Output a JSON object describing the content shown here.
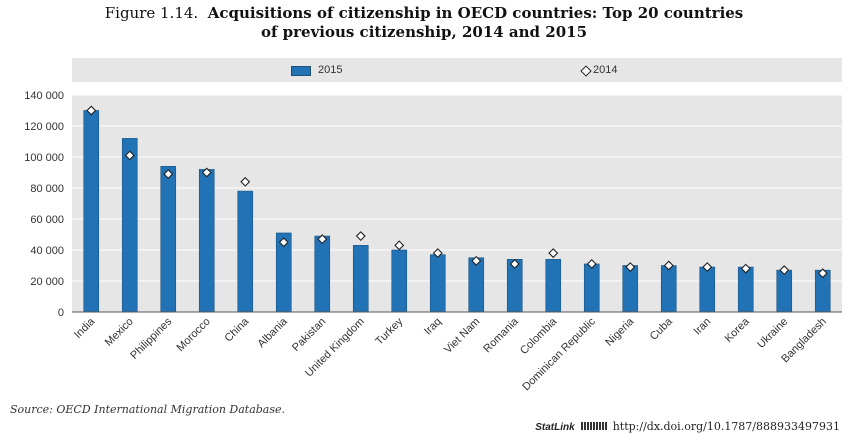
{
  "title": {
    "figure_number": "Figure 1.14.",
    "line1": "Acquisitions of citizenship in OECD countries: Top 20 countries",
    "line2": "of previous citizenship, 2014 and 2015"
  },
  "colors": {
    "bar": "#2273b5",
    "bar_edge": "#1a5585",
    "plot_bg": "#e6e6e6",
    "marker_fill": "#ffffff",
    "marker_edge": "#222222"
  },
  "chart_data": {
    "type": "bar",
    "categories": [
      "India",
      "Mexico",
      "Philippines",
      "Morocco",
      "China",
      "Albania",
      "Pakistan",
      "United Kingdom",
      "Turkey",
      "Iraq",
      "Viet Nam",
      "Romania",
      "Colombia",
      "Dominican Republic",
      "Nigeria",
      "Cuba",
      "Iran",
      "Korea",
      "Ukraine",
      "Bangladesh"
    ],
    "series": [
      {
        "name": "2015",
        "mark": "bar",
        "values": [
          130000,
          112000,
          94000,
          92000,
          78000,
          51000,
          49000,
          43000,
          40000,
          37000,
          35000,
          34000,
          34000,
          31000,
          30000,
          30000,
          29000,
          29000,
          27000,
          27000
        ]
      },
      {
        "name": "2014",
        "mark": "diamond",
        "values": [
          130000,
          101000,
          89000,
          90000,
          84000,
          45000,
          47000,
          49000,
          43000,
          38000,
          33000,
          31000,
          38000,
          31000,
          29000,
          30000,
          29000,
          28000,
          27000,
          25000
        ]
      }
    ],
    "yticks": [
      "0",
      "20 000",
      "40 000",
      "60 000",
      "80 000",
      "100 000",
      "120 000",
      "140 000"
    ],
    "ylim": [
      0,
      140000
    ],
    "grid": "horizontal",
    "legend_placement": "top"
  },
  "legend": {
    "bar_label": "2015",
    "marker_label": "2014",
    "marker_glyph": "◇"
  },
  "source": "Source: OECD International Migration Database.",
  "statlink": {
    "label": "StatLink",
    "url": "http://dx.doi.org/10.1787/888933497931"
  }
}
